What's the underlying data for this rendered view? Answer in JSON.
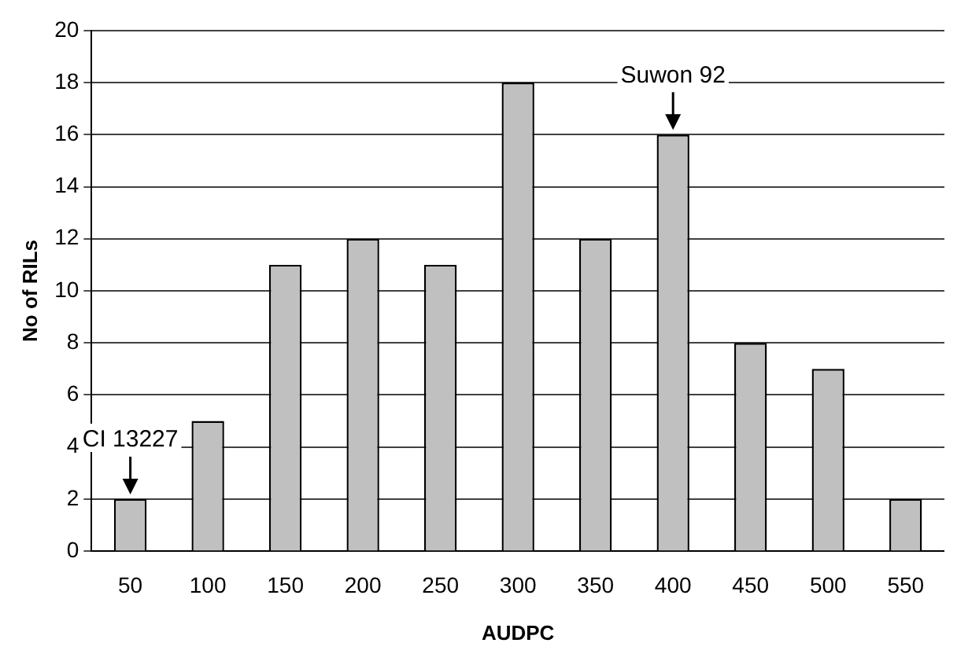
{
  "chart_data": {
    "type": "bar",
    "xlabel": "AUDPC",
    "ylabel": "No of RILs",
    "categories": [
      "50",
      "100",
      "150",
      "200",
      "250",
      "300",
      "350",
      "400",
      "450",
      "500",
      "550"
    ],
    "values": [
      2,
      5,
      11,
      12,
      11,
      18,
      12,
      16,
      8,
      7,
      2
    ],
    "color": "#c0c0c0",
    "ylim": [
      0,
      20
    ],
    "yticks": [
      0,
      2,
      4,
      6,
      8,
      10,
      12,
      14,
      16,
      18,
      20
    ],
    "grid": "y",
    "legend": false,
    "annotations": [
      {
        "text": "CI 13227",
        "x": "50",
        "y": 2
      },
      {
        "text": "Suwon 92",
        "x": "400",
        "y": 16
      }
    ]
  }
}
